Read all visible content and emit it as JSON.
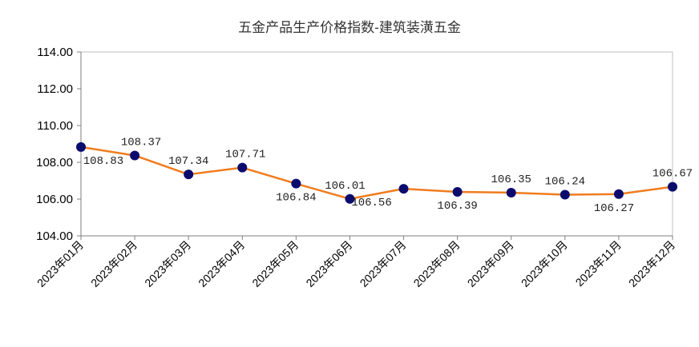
{
  "chart_data": {
    "type": "line",
    "title": "五金产品生产价格指数-建筑装潢五金",
    "xlabel": "",
    "ylabel": "",
    "categories": [
      "2023年01月",
      "2023年02月",
      "2023年03月",
      "2023年04月",
      "2023年05月",
      "2023年06月",
      "2023年07月",
      "2023年08月",
      "2023年09月",
      "2023年10月",
      "2023年11月",
      "2023年12月"
    ],
    "values": [
      108.83,
      108.37,
      107.34,
      107.71,
      106.84,
      106.01,
      106.56,
      106.39,
      106.35,
      106.24,
      106.27,
      106.67
    ],
    "data_labels": [
      "108.83",
      "108.37",
      "107.34",
      "107.71",
      "106.84",
      "106.01",
      "106.56",
      "106.39",
      "106.35",
      "106.24",
      "106.27",
      "106.67"
    ],
    "ylim": [
      104,
      114
    ],
    "yticks": [
      "104.00",
      "106.00",
      "108.00",
      "110.00",
      "112.00",
      "114.00"
    ],
    "grid": false,
    "legend": "none",
    "colors": {
      "line": "#f07c1e",
      "marker": "#0b0b6e",
      "axis": "#bfbfbf"
    }
  }
}
